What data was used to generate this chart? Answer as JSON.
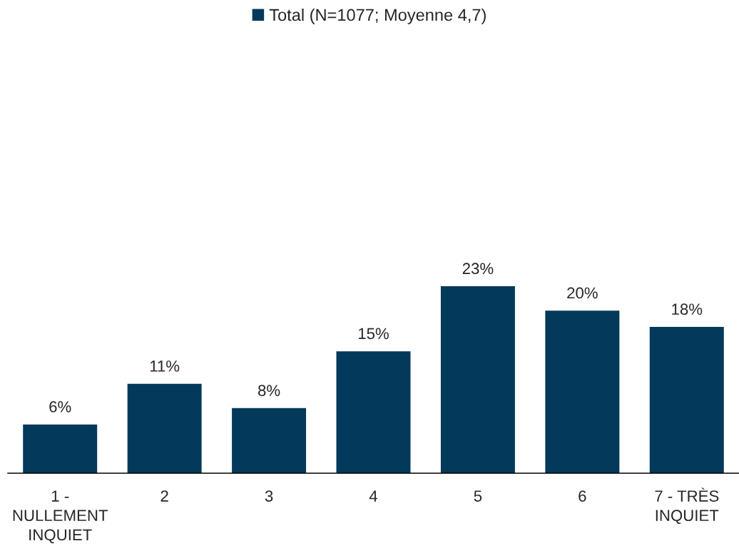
{
  "chart_data": {
    "type": "bar",
    "categories": [
      "1 -\nNULLEMENT\nINQUIET",
      "2",
      "3",
      "4",
      "5",
      "6",
      "7 - TRÈS\nINQUIET"
    ],
    "series": [
      {
        "name": "Total (N=1077; Moyenne 4,7)",
        "color": "#03395a",
        "values": [
          6,
          11,
          8,
          15,
          23,
          20,
          18
        ],
        "value_labels": [
          "6%",
          "11%",
          "8%",
          "15%",
          "23%",
          "20%",
          "18%"
        ]
      }
    ],
    "tick_labels": "x",
    "legend": "top",
    "grid": false
  }
}
